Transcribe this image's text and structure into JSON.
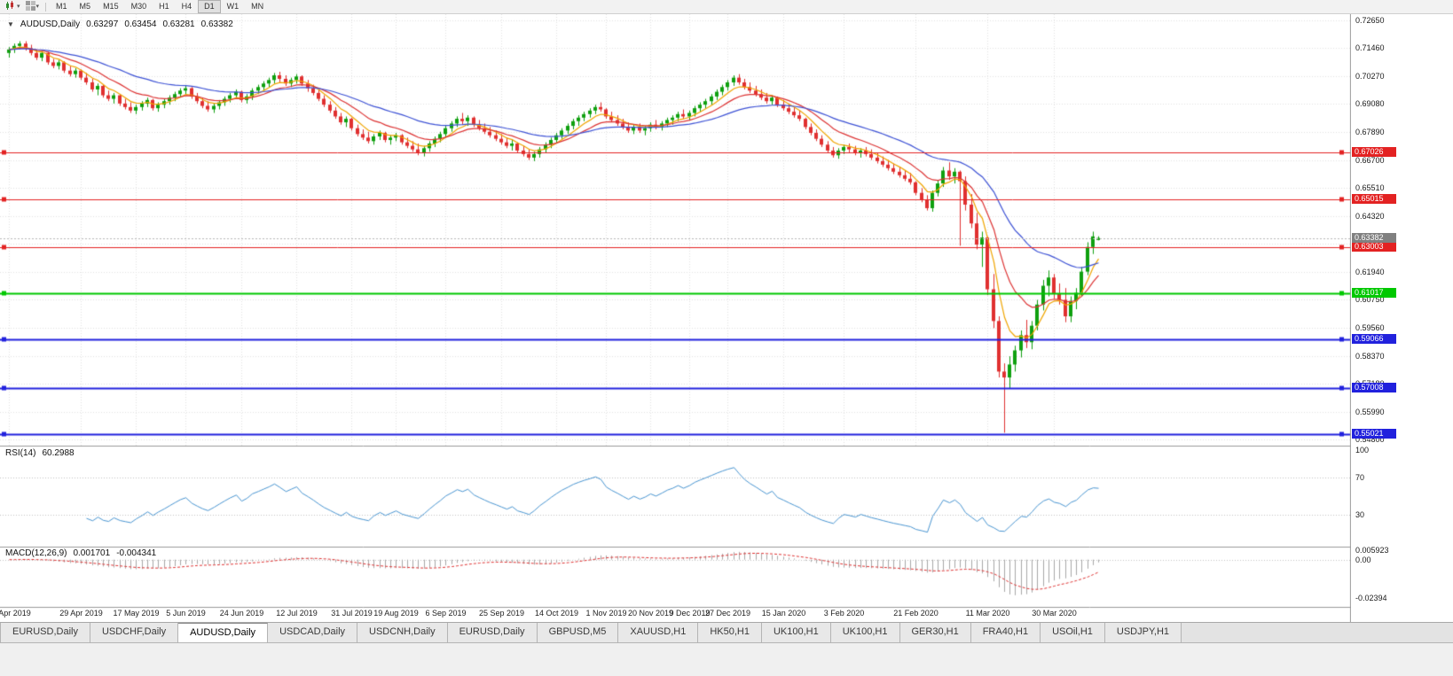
{
  "toolbar": {
    "timeframes": [
      "M1",
      "M5",
      "M15",
      "M30",
      "H1",
      "H4",
      "D1",
      "W1",
      "MN"
    ],
    "active_timeframe": "D1"
  },
  "header": {
    "symbol": "AUDUSD,Daily",
    "open": "0.63297",
    "high": "0.63454",
    "low": "0.63281",
    "close": "0.63382"
  },
  "chart_data": {
    "type": "candlestick",
    "symbol": "AUDUSD",
    "timeframe": "Daily",
    "y_range": [
      0.5455,
      0.729
    ],
    "y_ticks": [
      "0.72650",
      "0.71460",
      "0.70270",
      "0.69080",
      "0.67890",
      "0.66700",
      "0.65510",
      "0.64320",
      "0.63130",
      "0.61940",
      "0.60750",
      "0.59560",
      "0.58370",
      "0.57180",
      "0.55990",
      "0.54800"
    ],
    "x_labels": [
      "10 Apr 2019",
      "29 Apr 2019",
      "17 May 2019",
      "5 Jun 2019",
      "24 Jun 2019",
      "12 Jul 2019",
      "31 Jul 2019",
      "19 Aug 2019",
      "6 Sep 2019",
      "25 Sep 2019",
      "14 Oct 2019",
      "1 Nov 2019",
      "20 Nov 2019",
      "9 Dec 2019",
      "27 Dec 2019",
      "15 Jan 2020",
      "3 Feb 2020",
      "21 Feb 2020",
      "11 Mar 2020",
      "30 Mar 2020"
    ],
    "x_label_indices": [
      0,
      13,
      23,
      32,
      42,
      52,
      62,
      70,
      79,
      89,
      99,
      108,
      116,
      123,
      130,
      140,
      151,
      164,
      177,
      189
    ],
    "candles": [
      [
        0.7125,
        0.715,
        0.7105,
        0.714
      ],
      [
        0.714,
        0.7165,
        0.7125,
        0.7155
      ],
      [
        0.7155,
        0.7175,
        0.714,
        0.7165
      ],
      [
        0.7165,
        0.7175,
        0.7135,
        0.7145
      ],
      [
        0.7145,
        0.716,
        0.7115,
        0.7125
      ],
      [
        0.7125,
        0.714,
        0.7095,
        0.7105
      ],
      [
        0.7105,
        0.7135,
        0.709,
        0.7125
      ],
      [
        0.7125,
        0.713,
        0.7075,
        0.7085
      ],
      [
        0.7085,
        0.71,
        0.706,
        0.707
      ],
      [
        0.707,
        0.7095,
        0.7055,
        0.7085
      ],
      [
        0.7085,
        0.709,
        0.704,
        0.705
      ],
      [
        0.705,
        0.707,
        0.7025,
        0.7035
      ],
      [
        0.7035,
        0.706,
        0.702,
        0.705
      ],
      [
        0.705,
        0.7055,
        0.701,
        0.702
      ],
      [
        0.702,
        0.704,
        0.699,
        0.7
      ],
      [
        0.7,
        0.7015,
        0.696,
        0.697
      ],
      [
        0.697,
        0.6995,
        0.6945,
        0.6985
      ],
      [
        0.6985,
        0.699,
        0.6935,
        0.6945
      ],
      [
        0.6945,
        0.6965,
        0.692,
        0.693
      ],
      [
        0.693,
        0.6955,
        0.691,
        0.6945
      ],
      [
        0.6945,
        0.695,
        0.69,
        0.691
      ],
      [
        0.691,
        0.693,
        0.6885,
        0.6895
      ],
      [
        0.6895,
        0.6915,
        0.687,
        0.688
      ],
      [
        0.688,
        0.6905,
        0.6865,
        0.6895
      ],
      [
        0.6895,
        0.692,
        0.688,
        0.691
      ],
      [
        0.691,
        0.6935,
        0.6895,
        0.6925
      ],
      [
        0.6925,
        0.693,
        0.688,
        0.689
      ],
      [
        0.689,
        0.6915,
        0.6875,
        0.6905
      ],
      [
        0.6905,
        0.693,
        0.689,
        0.692
      ],
      [
        0.692,
        0.6945,
        0.6905,
        0.6935
      ],
      [
        0.6935,
        0.696,
        0.692,
        0.695
      ],
      [
        0.695,
        0.6975,
        0.6935,
        0.6965
      ],
      [
        0.6965,
        0.6985,
        0.695,
        0.6975
      ],
      [
        0.6975,
        0.698,
        0.693,
        0.694
      ],
      [
        0.694,
        0.6955,
        0.691,
        0.692
      ],
      [
        0.692,
        0.6935,
        0.689,
        0.69
      ],
      [
        0.69,
        0.692,
        0.6875,
        0.6885
      ],
      [
        0.6885,
        0.691,
        0.687,
        0.69
      ],
      [
        0.69,
        0.6925,
        0.6885,
        0.6915
      ],
      [
        0.6915,
        0.694,
        0.69,
        0.693
      ],
      [
        0.693,
        0.6955,
        0.6915,
        0.6945
      ],
      [
        0.6945,
        0.697,
        0.693,
        0.696
      ],
      [
        0.696,
        0.6965,
        0.6915,
        0.6925
      ],
      [
        0.6925,
        0.695,
        0.691,
        0.694
      ],
      [
        0.694,
        0.6975,
        0.6925,
        0.6965
      ],
      [
        0.6965,
        0.699,
        0.695,
        0.698
      ],
      [
        0.698,
        0.7005,
        0.6965,
        0.6995
      ],
      [
        0.6995,
        0.702,
        0.698,
        0.701
      ],
      [
        0.701,
        0.704,
        0.6995,
        0.703
      ],
      [
        0.703,
        0.7045,
        0.7,
        0.7015
      ],
      [
        0.7015,
        0.703,
        0.6985,
        0.6995
      ],
      [
        0.6995,
        0.702,
        0.698,
        0.701
      ],
      [
        0.701,
        0.7035,
        0.6995,
        0.7025
      ],
      [
        0.7025,
        0.703,
        0.6985,
        0.6995
      ],
      [
        0.6995,
        0.701,
        0.696,
        0.6975
      ],
      [
        0.6975,
        0.699,
        0.6945,
        0.6955
      ],
      [
        0.6955,
        0.697,
        0.692,
        0.693
      ],
      [
        0.693,
        0.6945,
        0.6895,
        0.6905
      ],
      [
        0.6905,
        0.692,
        0.687,
        0.688
      ],
      [
        0.688,
        0.6895,
        0.6845,
        0.6855
      ],
      [
        0.6855,
        0.687,
        0.682,
        0.683
      ],
      [
        0.683,
        0.6855,
        0.681,
        0.6845
      ],
      [
        0.6845,
        0.685,
        0.6795,
        0.6805
      ],
      [
        0.6805,
        0.682,
        0.677,
        0.678
      ],
      [
        0.678,
        0.68,
        0.6755,
        0.6765
      ],
      [
        0.6765,
        0.679,
        0.674,
        0.675
      ],
      [
        0.675,
        0.678,
        0.6735,
        0.677
      ],
      [
        0.677,
        0.6795,
        0.6755,
        0.6785
      ],
      [
        0.6785,
        0.679,
        0.6745,
        0.6755
      ],
      [
        0.6755,
        0.6775,
        0.6735,
        0.6765
      ],
      [
        0.6765,
        0.6785,
        0.675,
        0.6775
      ],
      [
        0.6775,
        0.678,
        0.6735,
        0.6745
      ],
      [
        0.6745,
        0.6765,
        0.672,
        0.673
      ],
      [
        0.673,
        0.675,
        0.6705,
        0.6715
      ],
      [
        0.6715,
        0.674,
        0.669,
        0.67
      ],
      [
        0.67,
        0.673,
        0.6685,
        0.672
      ],
      [
        0.672,
        0.675,
        0.6705,
        0.674
      ],
      [
        0.674,
        0.677,
        0.6725,
        0.676
      ],
      [
        0.676,
        0.679,
        0.6745,
        0.678
      ],
      [
        0.678,
        0.6815,
        0.6765,
        0.6805
      ],
      [
        0.6805,
        0.6835,
        0.679,
        0.6825
      ],
      [
        0.6825,
        0.6855,
        0.681,
        0.6845
      ],
      [
        0.6845,
        0.687,
        0.682,
        0.6835
      ],
      [
        0.6835,
        0.686,
        0.6815,
        0.685
      ],
      [
        0.685,
        0.6855,
        0.681,
        0.682
      ],
      [
        0.682,
        0.684,
        0.6795,
        0.6805
      ],
      [
        0.6805,
        0.6825,
        0.678,
        0.679
      ],
      [
        0.679,
        0.681,
        0.6765,
        0.6775
      ],
      [
        0.6775,
        0.6795,
        0.675,
        0.676
      ],
      [
        0.676,
        0.678,
        0.6735,
        0.6745
      ],
      [
        0.6745,
        0.6765,
        0.672,
        0.673
      ],
      [
        0.673,
        0.6755,
        0.671,
        0.674
      ],
      [
        0.674,
        0.6745,
        0.67,
        0.671
      ],
      [
        0.671,
        0.673,
        0.6685,
        0.6695
      ],
      [
        0.6695,
        0.6715,
        0.667,
        0.668
      ],
      [
        0.668,
        0.6705,
        0.6665,
        0.6695
      ],
      [
        0.6695,
        0.6725,
        0.668,
        0.6715
      ],
      [
        0.6715,
        0.6745,
        0.67,
        0.6735
      ],
      [
        0.6735,
        0.6765,
        0.672,
        0.6755
      ],
      [
        0.6755,
        0.6785,
        0.674,
        0.6775
      ],
      [
        0.6775,
        0.6805,
        0.676,
        0.6795
      ],
      [
        0.6795,
        0.6825,
        0.678,
        0.6815
      ],
      [
        0.6815,
        0.6845,
        0.68,
        0.6835
      ],
      [
        0.6835,
        0.686,
        0.6815,
        0.685
      ],
      [
        0.685,
        0.6875,
        0.6835,
        0.6865
      ],
      [
        0.6865,
        0.689,
        0.685,
        0.688
      ],
      [
        0.688,
        0.6905,
        0.6865,
        0.6895
      ],
      [
        0.6895,
        0.6915,
        0.6875,
        0.6885
      ],
      [
        0.6885,
        0.689,
        0.6845,
        0.6855
      ],
      [
        0.6855,
        0.6875,
        0.683,
        0.684
      ],
      [
        0.684,
        0.686,
        0.6815,
        0.6825
      ],
      [
        0.6825,
        0.6845,
        0.68,
        0.681
      ],
      [
        0.681,
        0.683,
        0.6785,
        0.6795
      ],
      [
        0.6795,
        0.682,
        0.678,
        0.681
      ],
      [
        0.681,
        0.6825,
        0.6785,
        0.6795
      ],
      [
        0.6795,
        0.6815,
        0.6775,
        0.6805
      ],
      [
        0.6805,
        0.683,
        0.679,
        0.682
      ],
      [
        0.682,
        0.684,
        0.68,
        0.681
      ],
      [
        0.681,
        0.6835,
        0.6795,
        0.6825
      ],
      [
        0.6825,
        0.685,
        0.681,
        0.684
      ],
      [
        0.684,
        0.686,
        0.682,
        0.685
      ],
      [
        0.685,
        0.6875,
        0.6835,
        0.6865
      ],
      [
        0.6865,
        0.6885,
        0.6845,
        0.6855
      ],
      [
        0.6855,
        0.688,
        0.684,
        0.687
      ],
      [
        0.687,
        0.69,
        0.6855,
        0.689
      ],
      [
        0.689,
        0.6915,
        0.6875,
        0.6905
      ],
      [
        0.6905,
        0.693,
        0.689,
        0.692
      ],
      [
        0.692,
        0.695,
        0.6905,
        0.694
      ],
      [
        0.694,
        0.697,
        0.6925,
        0.696
      ],
      [
        0.696,
        0.699,
        0.6945,
        0.698
      ],
      [
        0.698,
        0.701,
        0.6965,
        0.7
      ],
      [
        0.7,
        0.703,
        0.6985,
        0.702
      ],
      [
        0.702,
        0.7035,
        0.699,
        0.7
      ],
      [
        0.7,
        0.7015,
        0.697,
        0.698
      ],
      [
        0.698,
        0.7,
        0.6955,
        0.6965
      ],
      [
        0.6965,
        0.6985,
        0.694,
        0.695
      ],
      [
        0.695,
        0.697,
        0.6925,
        0.6935
      ],
      [
        0.6935,
        0.6955,
        0.691,
        0.692
      ],
      [
        0.692,
        0.6945,
        0.6905,
        0.6935
      ],
      [
        0.6935,
        0.694,
        0.6895,
        0.6905
      ],
      [
        0.6905,
        0.6925,
        0.688,
        0.689
      ],
      [
        0.689,
        0.691,
        0.6865,
        0.6875
      ],
      [
        0.6875,
        0.6895,
        0.685,
        0.686
      ],
      [
        0.686,
        0.688,
        0.6835,
        0.6845
      ],
      [
        0.6845,
        0.685,
        0.68,
        0.681
      ],
      [
        0.681,
        0.6825,
        0.6775,
        0.6785
      ],
      [
        0.6785,
        0.68,
        0.675,
        0.676
      ],
      [
        0.676,
        0.6775,
        0.6725,
        0.6735
      ],
      [
        0.6735,
        0.675,
        0.67,
        0.671
      ],
      [
        0.671,
        0.6725,
        0.668,
        0.669
      ],
      [
        0.669,
        0.672,
        0.6675,
        0.671
      ],
      [
        0.671,
        0.6735,
        0.6695,
        0.6725
      ],
      [
        0.6725,
        0.674,
        0.67,
        0.6715
      ],
      [
        0.6715,
        0.673,
        0.669,
        0.67
      ],
      [
        0.67,
        0.672,
        0.668,
        0.671
      ],
      [
        0.671,
        0.6725,
        0.6685,
        0.6695
      ],
      [
        0.6695,
        0.6715,
        0.667,
        0.668
      ],
      [
        0.668,
        0.67,
        0.6655,
        0.6665
      ],
      [
        0.6665,
        0.6685,
        0.664,
        0.665
      ],
      [
        0.665,
        0.667,
        0.6625,
        0.6635
      ],
      [
        0.6635,
        0.6655,
        0.661,
        0.662
      ],
      [
        0.662,
        0.664,
        0.6595,
        0.6605
      ],
      [
        0.6605,
        0.6625,
        0.658,
        0.659
      ],
      [
        0.659,
        0.6615,
        0.6565,
        0.6575
      ],
      [
        0.6575,
        0.658,
        0.652,
        0.653
      ],
      [
        0.653,
        0.655,
        0.649,
        0.65
      ],
      [
        0.65,
        0.652,
        0.6455,
        0.6465
      ],
      [
        0.6465,
        0.654,
        0.645,
        0.653
      ],
      [
        0.653,
        0.6585,
        0.6515,
        0.657
      ],
      [
        0.657,
        0.664,
        0.6555,
        0.6625
      ],
      [
        0.6625,
        0.666,
        0.6585,
        0.66
      ],
      [
        0.66,
        0.6635,
        0.657,
        0.662
      ],
      [
        0.662,
        0.6625,
        0.6305,
        0.658
      ],
      [
        0.658,
        0.66,
        0.6455,
        0.648
      ],
      [
        0.648,
        0.6525,
        0.638,
        0.64
      ],
      [
        0.64,
        0.6445,
        0.629,
        0.631
      ],
      [
        0.631,
        0.6365,
        0.6215,
        0.634
      ],
      [
        0.634,
        0.6345,
        0.6095,
        0.612
      ],
      [
        0.612,
        0.6185,
        0.5955,
        0.5985
      ],
      [
        0.5985,
        0.6005,
        0.5745,
        0.577
      ],
      [
        0.577,
        0.5805,
        0.551,
        0.5745
      ],
      [
        0.5745,
        0.5835,
        0.57,
        0.58
      ],
      [
        0.58,
        0.588,
        0.577,
        0.586
      ],
      [
        0.586,
        0.5945,
        0.583,
        0.5925
      ],
      [
        0.5925,
        0.599,
        0.587,
        0.5895
      ],
      [
        0.5895,
        0.5985,
        0.5865,
        0.5965
      ],
      [
        0.5965,
        0.6075,
        0.5945,
        0.6055
      ],
      [
        0.6055,
        0.616,
        0.603,
        0.6135
      ],
      [
        0.6135,
        0.62,
        0.609,
        0.617
      ],
      [
        0.617,
        0.6185,
        0.608,
        0.61
      ],
      [
        0.61,
        0.6145,
        0.6055,
        0.6075
      ],
      [
        0.6075,
        0.6125,
        0.598,
        0.6005
      ],
      [
        0.6005,
        0.609,
        0.598,
        0.607
      ],
      [
        0.607,
        0.6125,
        0.6035,
        0.6105
      ],
      [
        0.6105,
        0.6215,
        0.609,
        0.6195
      ],
      [
        0.6195,
        0.632,
        0.618,
        0.63
      ],
      [
        0.63,
        0.6365,
        0.627,
        0.6345
      ],
      [
        0.63297,
        0.63454,
        0.63281,
        0.63382
      ]
    ],
    "moving_averages": [
      {
        "period": 6,
        "color": "#f0a500"
      },
      {
        "period": 13,
        "color": "#dd3333"
      },
      {
        "period": 32,
        "color": "#3d52d5"
      }
    ],
    "horizontal_lines": [
      {
        "value": 0.67026,
        "label": "0.67026",
        "color": "#e32222",
        "width": 1
      },
      {
        "value": 0.65015,
        "label": "0.65015",
        "color": "#e32222",
        "width": 1
      },
      {
        "value": 0.63003,
        "label": "0.63003",
        "color": "#e32222",
        "width": 1
      },
      {
        "value": 0.61017,
        "label": "0.61017",
        "color": "#00c800",
        "width": 2
      },
      {
        "value": 0.59066,
        "label": "0.59066",
        "color": "#2121dd",
        "width": 2
      },
      {
        "value": 0.57008,
        "label": "0.57008",
        "color": "#2121dd",
        "width": 2
      },
      {
        "value": 0.55021,
        "label": "0.55021",
        "color": "#2121dd",
        "width": 2
      }
    ],
    "current_price": {
      "value": 0.63382,
      "label": "0.63382",
      "tag_color": "#808080"
    },
    "indicators": {
      "rsi": {
        "title": "RSI(14)",
        "value": "60.2988",
        "period": 14,
        "range": [
          0,
          100
        ],
        "levels": [
          70,
          30
        ],
        "axis_labels": [
          {
            "value": 100,
            "label": "100"
          },
          {
            "value": 70,
            "label": "70"
          },
          {
            "value": 30,
            "label": "30"
          }
        ],
        "color": "#4a96d2"
      },
      "macd": {
        "title": "MACD(12,26,9)",
        "macd_value": "0.001701",
        "signal_value": "-0.004341",
        "fast": 12,
        "slow": 26,
        "signal": 9,
        "range": [
          -0.028,
          0.0065
        ],
        "axis_labels": [
          {
            "value": 0.005923,
            "label": "0.005923"
          },
          {
            "value": 0,
            "label": "0.00"
          },
          {
            "value": -0.02394,
            "label": "-0.02394"
          }
        ],
        "histogram_color": "#a8a8a8",
        "signal_color": "#e03232"
      }
    },
    "colors": {
      "up": "#0fa00f",
      "down": "#e03030",
      "grid": "#e2e2e2",
      "background": "#ffffff"
    }
  },
  "tabbar": {
    "tabs": [
      "EURUSD,Daily",
      "USDCHF,Daily",
      "AUDUSD,Daily",
      "USDCAD,Daily",
      "USDCNH,Daily",
      "EURUSD,Daily",
      "GBPUSD,M5",
      "XAUUSD,H1",
      "HK50,H1",
      "UK100,H1",
      "UK100,H1",
      "GER30,H1",
      "FRA40,H1",
      "USOil,H1",
      "USDJPY,H1"
    ],
    "active_index": 2
  }
}
